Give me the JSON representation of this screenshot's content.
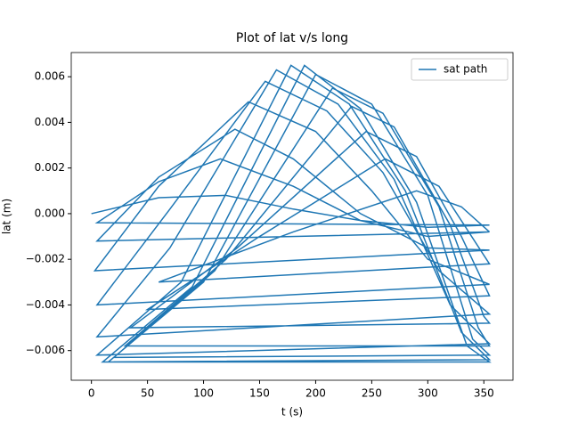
{
  "chart_data": {
    "type": "line",
    "title": "Plot of lat v/s long",
    "x_label": "t (s)",
    "y_label": "lat (m)",
    "xlim": [
      -18,
      376
    ],
    "ylim": [
      -0.0073,
      0.00706
    ],
    "xticks": [
      0,
      50,
      100,
      150,
      200,
      250,
      300,
      350
    ],
    "yticks": [
      {
        "value": -0.006,
        "label": "−0.006"
      },
      {
        "value": -0.004,
        "label": "−0.004"
      },
      {
        "value": -0.002,
        "label": "−0.002"
      },
      {
        "value": 0,
        "label": "0.000"
      },
      {
        "value": 0.002,
        "label": "0.002"
      },
      {
        "value": 0.004,
        "label": "0.004"
      },
      {
        "value": 0.006,
        "label": "0.006"
      }
    ],
    "grid": false,
    "legend": "upper right",
    "series": [
      {
        "name": "sat path",
        "color": "#1f77b4",
        "x": [
          0,
          60,
          120,
          180,
          240,
          300,
          355,
          5,
          60,
          115,
          180,
          240,
          300,
          355,
          5,
          60,
          128,
          180,
          240,
          300,
          355,
          3,
          60,
          140,
          200,
          250,
          300,
          355,
          5,
          70,
          155,
          210,
          260,
          310,
          355,
          5,
          70,
          165,
          220,
          270,
          320,
          355,
          5,
          80,
          178,
          230,
          280,
          330,
          355,
          10,
          90,
          190,
          240,
          290,
          335,
          355,
          15,
          100,
          200,
          250,
          300,
          340,
          355,
          20,
          110,
          215,
          260,
          310,
          345,
          355,
          30,
          120,
          232,
          270,
          320,
          350,
          355,
          35,
          130,
          245,
          290,
          330,
          355,
          50,
          150,
          262,
          310,
          355,
          60,
          180,
          290,
          330,
          355
        ],
        "values": [
          0,
          0.0007,
          0.0008,
          0.0002,
          -0.0003,
          -0.0006,
          -0.0005,
          -0.0004,
          0.0014,
          0.0024,
          0.0012,
          -0.0003,
          -0.001,
          -0.0008,
          -0.0012,
          0.0016,
          0.0037,
          0.0024,
          0,
          -0.0015,
          -0.0016,
          -0.0025,
          0.0012,
          0.0049,
          0.0036,
          0.001,
          -0.002,
          -0.0031,
          -0.004,
          0.0002,
          0.0058,
          0.0045,
          0.0018,
          -0.0025,
          -0.0044,
          -0.0054,
          -0.0015,
          0.0063,
          0.0048,
          0.0015,
          -0.004,
          -0.0057,
          -0.0062,
          -0.003,
          0.0065,
          0.0048,
          0.001,
          -0.0052,
          -0.0064,
          -0.0065,
          -0.0032,
          0.0065,
          0.0046,
          0.0005,
          -0.0058,
          -0.0065,
          -0.0065,
          -0.003,
          0.0061,
          0.0048,
          0.0008,
          -0.0055,
          -0.0062,
          -0.0063,
          -0.0025,
          0.0055,
          0.0044,
          0.0003,
          -0.005,
          -0.0058,
          -0.0058,
          -0.002,
          0.0047,
          0.0038,
          -0.0005,
          -0.0045,
          -0.0048,
          -0.005,
          -0.0015,
          0.0036,
          0.0025,
          -0.001,
          -0.0036,
          -0.0042,
          -0.001,
          0.0024,
          0.0012,
          -0.0022,
          -0.003,
          -0.0008,
          0.001,
          0.0003,
          -0.0008
        ]
      }
    ]
  }
}
